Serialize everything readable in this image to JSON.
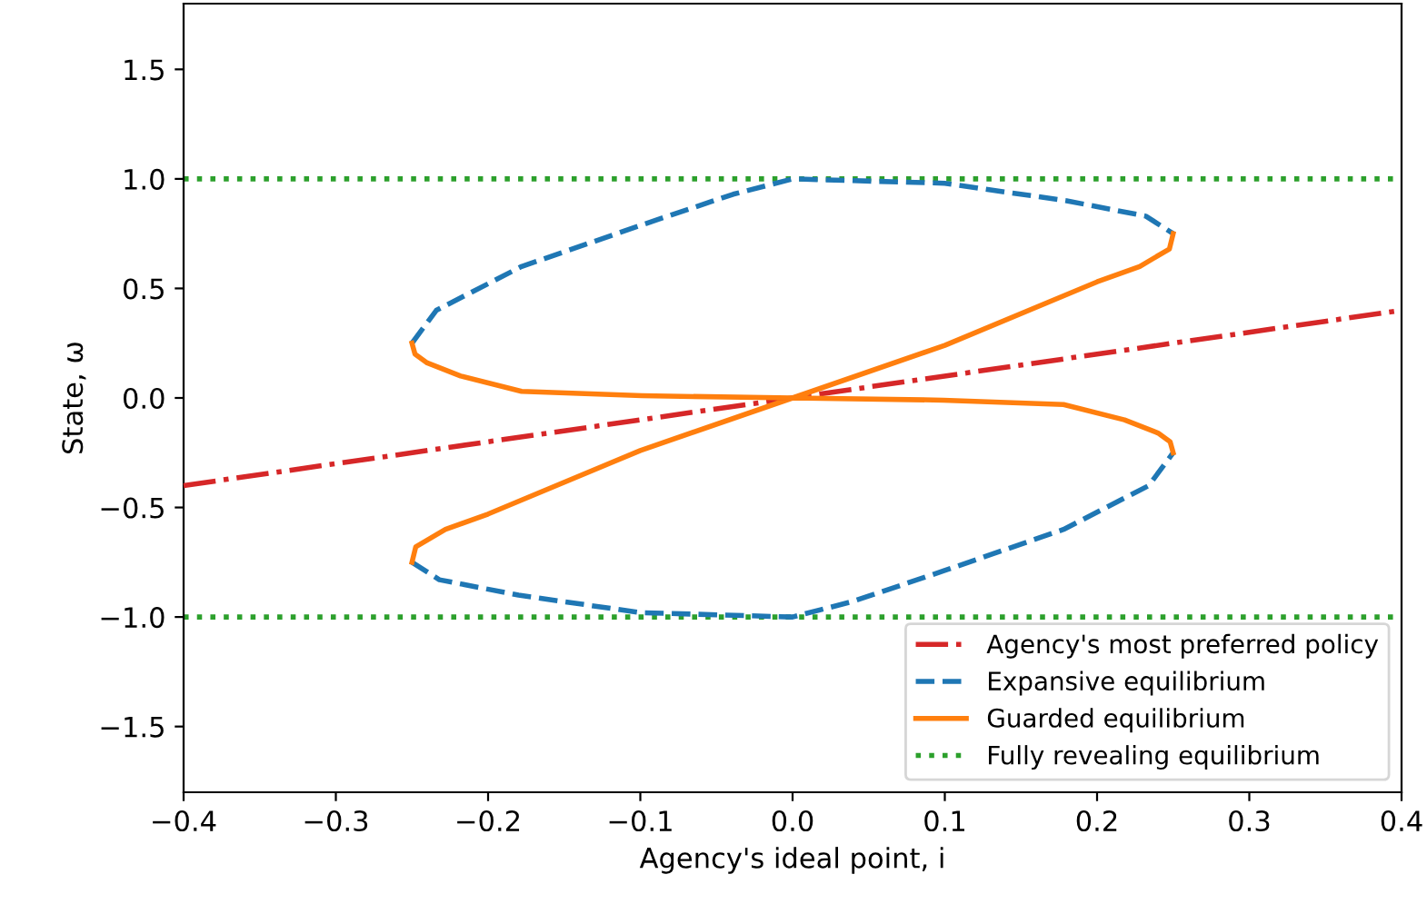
{
  "chart_data": {
    "type": "line",
    "xlabel": "Agency's ideal point, i",
    "ylabel": "State, ω",
    "xlim": [
      -0.4,
      0.4
    ],
    "ylim": [
      -1.8,
      1.8
    ],
    "xticks": [
      {
        "value": -0.4,
        "label": "−0.4"
      },
      {
        "value": -0.3,
        "label": "−0.3"
      },
      {
        "value": -0.2,
        "label": "−0.2"
      },
      {
        "value": -0.1,
        "label": "−0.1"
      },
      {
        "value": 0.0,
        "label": "0.0"
      },
      {
        "value": 0.1,
        "label": "0.1"
      },
      {
        "value": 0.2,
        "label": "0.2"
      },
      {
        "value": 0.3,
        "label": "0.3"
      },
      {
        "value": 0.4,
        "label": "0.4"
      }
    ],
    "yticks": [
      {
        "value": -1.5,
        "label": "−1.5"
      },
      {
        "value": -1.0,
        "label": "−1.0"
      },
      {
        "value": -0.5,
        "label": "−0.5"
      },
      {
        "value": 0.0,
        "label": "0.0"
      },
      {
        "value": 0.5,
        "label": "0.5"
      },
      {
        "value": 1.0,
        "label": "1.0"
      },
      {
        "value": 1.5,
        "label": "1.5"
      }
    ],
    "grid": false,
    "legend": "bottom right",
    "series": [
      {
        "name": "Agency's most preferred policy",
        "color": "#d62728",
        "line_style": "dashdot",
        "x": [
          -0.4,
          0.4
        ],
        "values": [
          -0.4,
          0.4
        ]
      },
      {
        "name": "Expansive equilibrium",
        "color": "#1f77b4",
        "line_style": "dashed",
        "x": [
          -0.25,
          -0.234,
          -0.178,
          -0.099,
          -0.039,
          0.0,
          0.1,
          0.18,
          0.232,
          0.25,
          null,
          -0.25,
          -0.232,
          -0.18,
          -0.1,
          0.0,
          0.039,
          0.099,
          0.178,
          0.234,
          0.25
        ],
        "values": [
          0.25,
          0.4,
          0.6,
          0.79,
          0.93,
          1.0,
          0.98,
          0.9,
          0.83,
          0.75,
          null,
          -0.75,
          -0.83,
          -0.9,
          -0.98,
          -1.0,
          -0.93,
          -0.79,
          -0.6,
          -0.4,
          -0.25
        ]
      },
      {
        "name": "Guarded equilibrium",
        "color": "#ff7f0e",
        "line_style": "solid",
        "x": [
          0.25,
          0.2475,
          0.228,
          0.2,
          0.1,
          0.0,
          -0.1,
          -0.2,
          -0.228,
          -0.2475,
          -0.25,
          null,
          -0.25,
          -0.248,
          -0.24,
          -0.218,
          -0.178,
          -0.099,
          0.0,
          0.099,
          0.178,
          0.218,
          0.24,
          0.248,
          0.25
        ],
        "values": [
          0.75,
          0.68,
          0.6,
          0.53,
          0.24,
          0.0,
          -0.24,
          -0.53,
          -0.6,
          -0.68,
          -0.75,
          null,
          0.25,
          0.2,
          0.16,
          0.1,
          0.03,
          0.01,
          0.0,
          -0.01,
          -0.03,
          -0.1,
          -0.16,
          -0.2,
          -0.25
        ]
      }
    ],
    "ref_lines": [
      {
        "axis": "y",
        "value": 1.0,
        "label": "Fully revealing equilibrium",
        "color": "#2ca02c",
        "line_style": "dotted"
      },
      {
        "axis": "y",
        "value": -1.0,
        "color": "#2ca02c",
        "line_style": "dotted"
      }
    ]
  }
}
